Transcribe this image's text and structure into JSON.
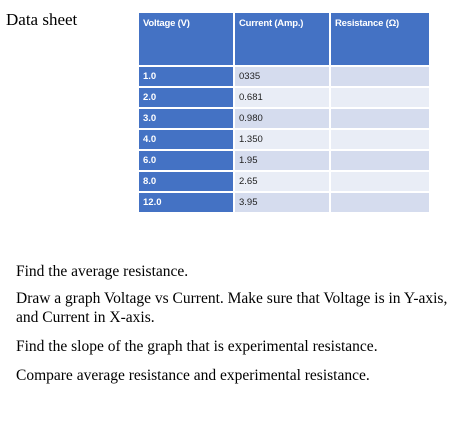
{
  "title": "Data sheet",
  "table": {
    "headers": [
      "Voltage (V)",
      "Current (Amp.)",
      "Resistance (Ω)"
    ],
    "rows": [
      {
        "voltage": "1.0",
        "current": "0335",
        "resistance": ""
      },
      {
        "voltage": "2.0",
        "current": "0.681",
        "resistance": ""
      },
      {
        "voltage": "3.0",
        "current": "0.980",
        "resistance": ""
      },
      {
        "voltage": "4.0",
        "current": "1.350",
        "resistance": ""
      },
      {
        "voltage": "6.0",
        "current": "1.95",
        "resistance": ""
      },
      {
        "voltage": "8.0",
        "current": "2.65",
        "resistance": ""
      },
      {
        "voltage": "12.0",
        "current": "3.95",
        "resistance": ""
      }
    ]
  },
  "instructions": [
    "Find the average resistance.",
    "Draw a graph Voltage vs Current.  Make sure that Voltage is in Y-axis, and Current in X-axis.",
    "Find the slope of the graph that is experimental resistance.",
    "Compare average resistance and experimental resistance."
  ],
  "colors": {
    "header_bg": "#4472c4",
    "row_odd": "#d5dcee",
    "row_even": "#e9edf6"
  }
}
